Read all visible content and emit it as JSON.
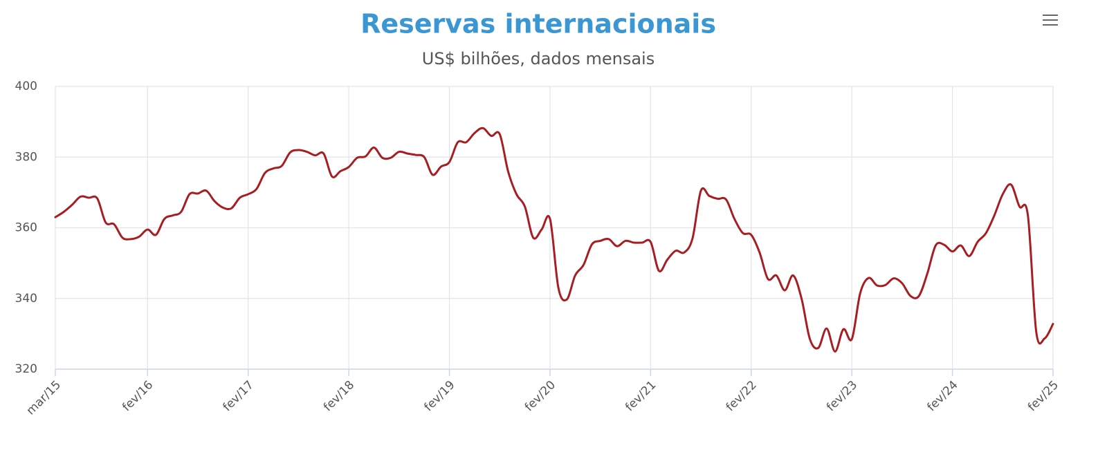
{
  "chart_data": {
    "type": "line",
    "title": "Reservas internacionais",
    "subtitle": "US$ bilhões, dados mensais",
    "categories": [
      "mar/15",
      null,
      null,
      null,
      null,
      null,
      null,
      null,
      null,
      null,
      null,
      "fev/16",
      null,
      null,
      null,
      null,
      null,
      null,
      null,
      null,
      null,
      null,
      null,
      "fev/17",
      null,
      null,
      null,
      null,
      null,
      null,
      null,
      null,
      null,
      null,
      null,
      "fev/18",
      null,
      null,
      null,
      null,
      null,
      null,
      null,
      null,
      null,
      null,
      null,
      "fev/19",
      null,
      null,
      null,
      null,
      null,
      null,
      null,
      null,
      null,
      null,
      null,
      "fev/20",
      null,
      null,
      null,
      null,
      null,
      null,
      null,
      null,
      null,
      null,
      null,
      "fev/21",
      null,
      null,
      null,
      null,
      null,
      null,
      null,
      null,
      null,
      null,
      null,
      "fev/22",
      null,
      null,
      null,
      null,
      null,
      null,
      null,
      null,
      null,
      null,
      null,
      "fev/23",
      null,
      null,
      null,
      null,
      null,
      null,
      null,
      null,
      null,
      null,
      null,
      "fev/24",
      null,
      null,
      null,
      null,
      null,
      null,
      null,
      null,
      null,
      null,
      null,
      "fev/25"
    ],
    "series": [
      {
        "name": "Reservas internacionais",
        "color": "#a61e22",
        "values": [
          363,
          364.5,
          366.5,
          368.8,
          368.5,
          368.3,
          361.5,
          361,
          357.2,
          356.8,
          357.5,
          359.5,
          358,
          362.5,
          363.5,
          364.5,
          369.5,
          369.7,
          370.5,
          367.5,
          365.7,
          365.5,
          368.5,
          369.5,
          371,
          375.5,
          376.8,
          377.5,
          381.3,
          382,
          381.5,
          380.5,
          381,
          374.5,
          376,
          377.2,
          379.8,
          380.2,
          382.7,
          379.8,
          379.8,
          381.5,
          381,
          380.6,
          380,
          375,
          377.3,
          378.6,
          384.2,
          384.2,
          386.8,
          388.2,
          386,
          386.5,
          376,
          369.5,
          366,
          357.2,
          359.5,
          362.5,
          343,
          339.7,
          346.5,
          349.5,
          355.3,
          356.3,
          356.8,
          354.8,
          356.3,
          355.8,
          355.8,
          356,
          347.8,
          351,
          353.5,
          353,
          357,
          370.5,
          369,
          368.2,
          368,
          362.5,
          358.5,
          358,
          353,
          345.5,
          346.5,
          342.3,
          346.5,
          340,
          328.5,
          326,
          331.5,
          325,
          331.3,
          328.5,
          341.5,
          345.8,
          343.7,
          343.8,
          345.7,
          344.3,
          340.7,
          340.7,
          347,
          355,
          355.2,
          353.3,
          355,
          352,
          356,
          358.5,
          363.5,
          369.5,
          372.2,
          366,
          363.5,
          330.5,
          328.7,
          332.8
        ]
      }
    ],
    "ylim": [
      320,
      400
    ],
    "yticks": [
      320,
      340,
      360,
      380,
      400
    ],
    "grid": true,
    "xgrid": true
  }
}
